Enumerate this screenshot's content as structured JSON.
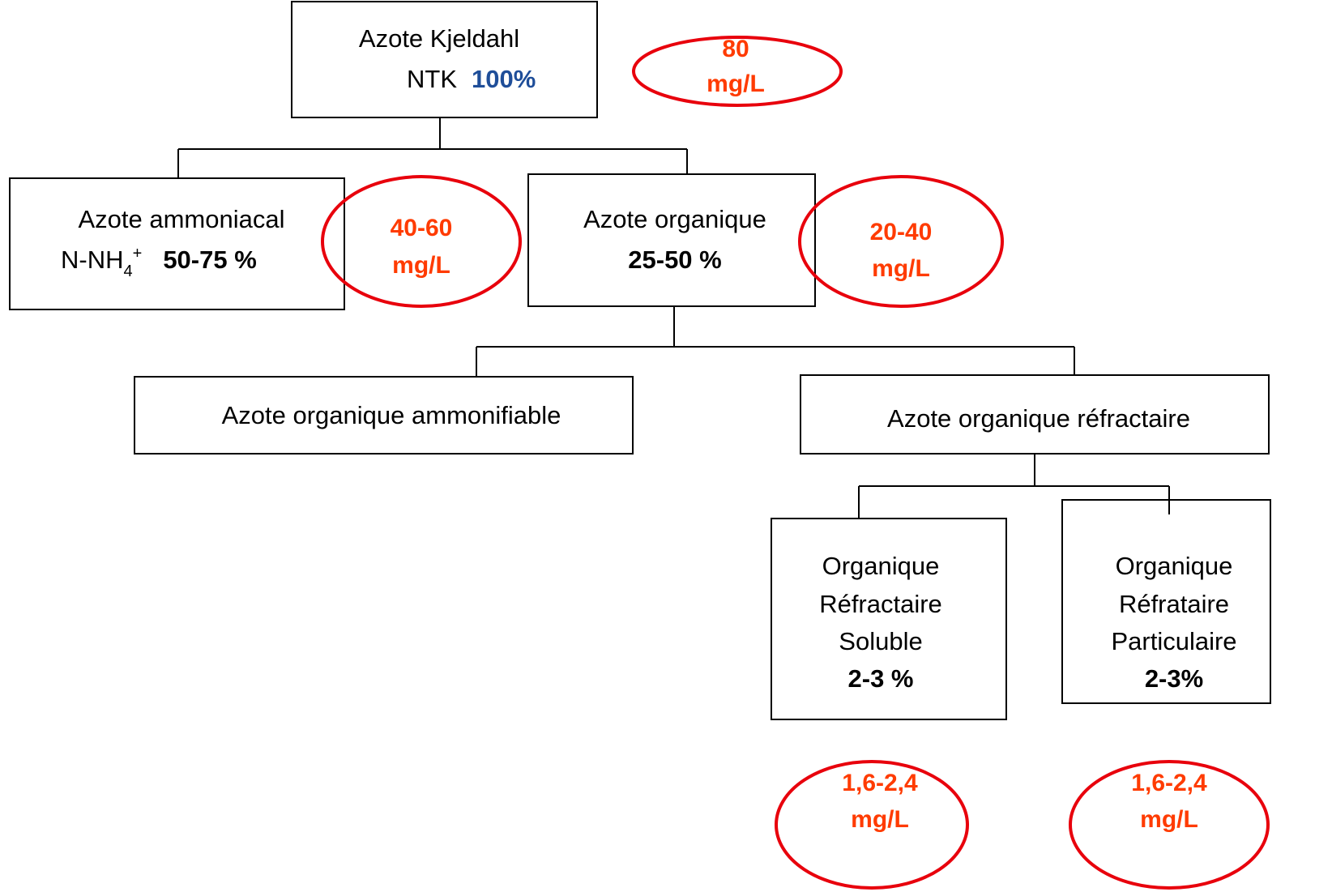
{
  "nodes": [
    {
      "lines": [
        "Azote Kjeldahl",
        "NTK",
        "100%"
      ]
    },
    {
      "lines": [
        "Azote ammoniacal",
        "N-NH",
        "4",
        "+",
        "50-75 %"
      ]
    },
    {
      "lines": [
        "Azote organique",
        "25-50 %"
      ]
    },
    {
      "lines": [
        "Azote organique ammonifiable"
      ]
    },
    {
      "lines": [
        "Azote organique réfractaire"
      ]
    },
    {
      "lines": [
        "Organique",
        "Réfractaire",
        "Soluble",
        "2-3 %"
      ]
    },
    {
      "lines": [
        "Organique",
        "Réfrataire",
        "Particulaire",
        "2-3%"
      ]
    }
  ],
  "concentrations": [
    {
      "value": "80",
      "unit": "mg/L"
    },
    {
      "value": "40-60",
      "unit": "mg/L"
    },
    {
      "value": "20-40",
      "unit": "mg/L"
    },
    {
      "value": "1,6-2,4",
      "unit": "mg/L"
    },
    {
      "value": "1,6-2,4",
      "unit": "mg/L"
    }
  ]
}
